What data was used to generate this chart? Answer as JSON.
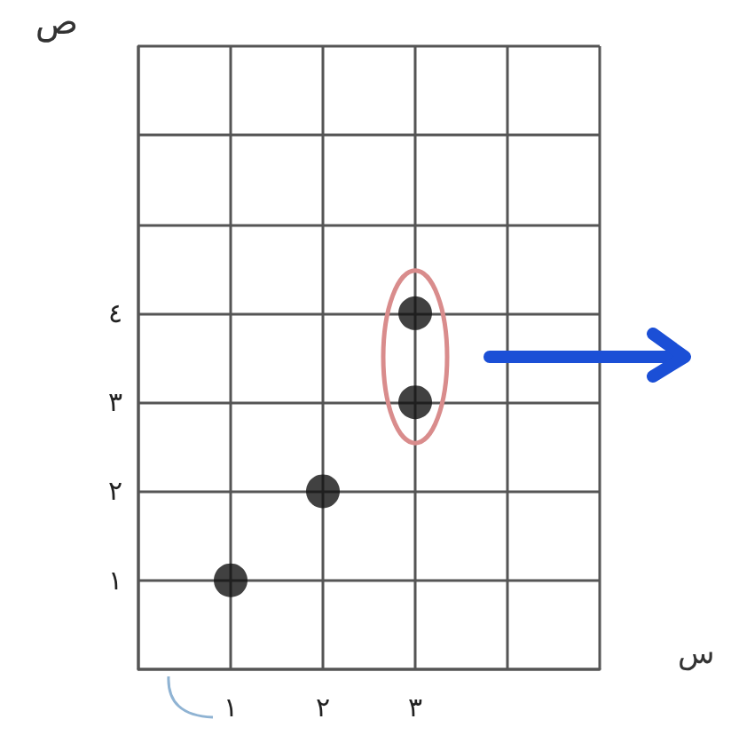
{
  "chart_data": {
    "type": "scatter",
    "xlabel": "س",
    "ylabel": "ص",
    "x": [
      1,
      2,
      3,
      3
    ],
    "values": [
      1,
      2,
      3,
      4
    ],
    "color": "#111111",
    "xlim": [
      0,
      5
    ],
    "ylim": [
      0,
      7
    ],
    "xticks": [
      {
        "value": 0,
        "label": null
      },
      {
        "value": 1,
        "label": "١"
      },
      {
        "value": 2,
        "label": "٢"
      },
      {
        "value": 3,
        "label": "٣"
      },
      {
        "value": 4,
        "label": null
      },
      {
        "value": 5,
        "label": null
      }
    ],
    "yticks": [
      {
        "value": 0,
        "label": null
      },
      {
        "value": 1,
        "label": "١"
      },
      {
        "value": 2,
        "label": "٢"
      },
      {
        "value": 3,
        "label": "٣"
      },
      {
        "value": 4,
        "label": "٤"
      },
      {
        "value": 5,
        "label": null
      },
      {
        "value": 6,
        "label": null
      },
      {
        "value": 7,
        "label": null
      }
    ],
    "grid": true,
    "marker": "circle"
  }
}
